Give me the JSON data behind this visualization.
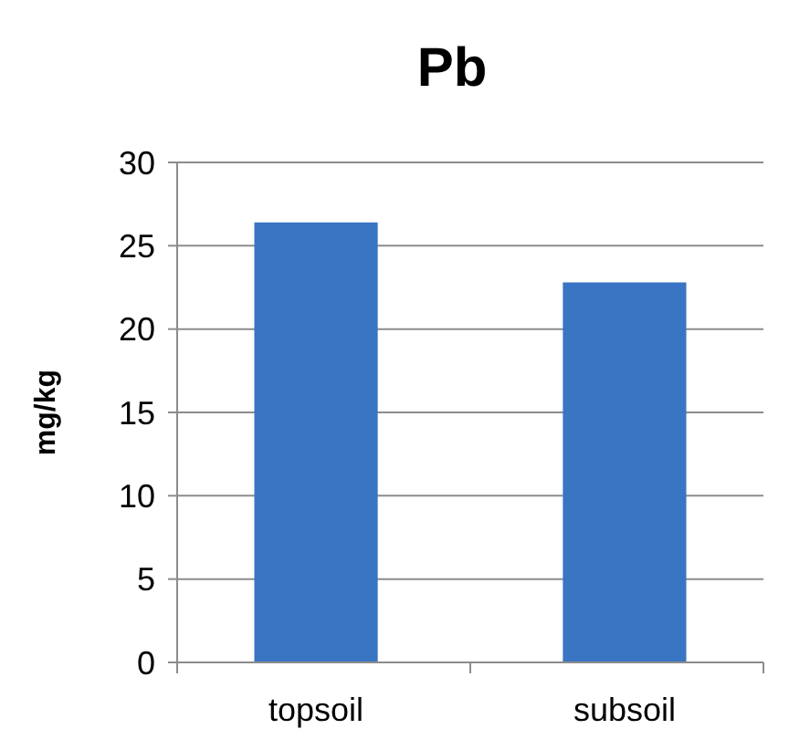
{
  "chart_data": {
    "type": "bar",
    "title": "Pb",
    "ylabel": "mg/kg",
    "categories": [
      "topsoil",
      "subsoil"
    ],
    "values": [
      26.4,
      22.8
    ],
    "color": "#3a75c4",
    "ylim": [
      0,
      30
    ],
    "yticks": [
      0,
      5,
      10,
      15,
      20,
      25,
      30
    ],
    "grid": "y"
  }
}
